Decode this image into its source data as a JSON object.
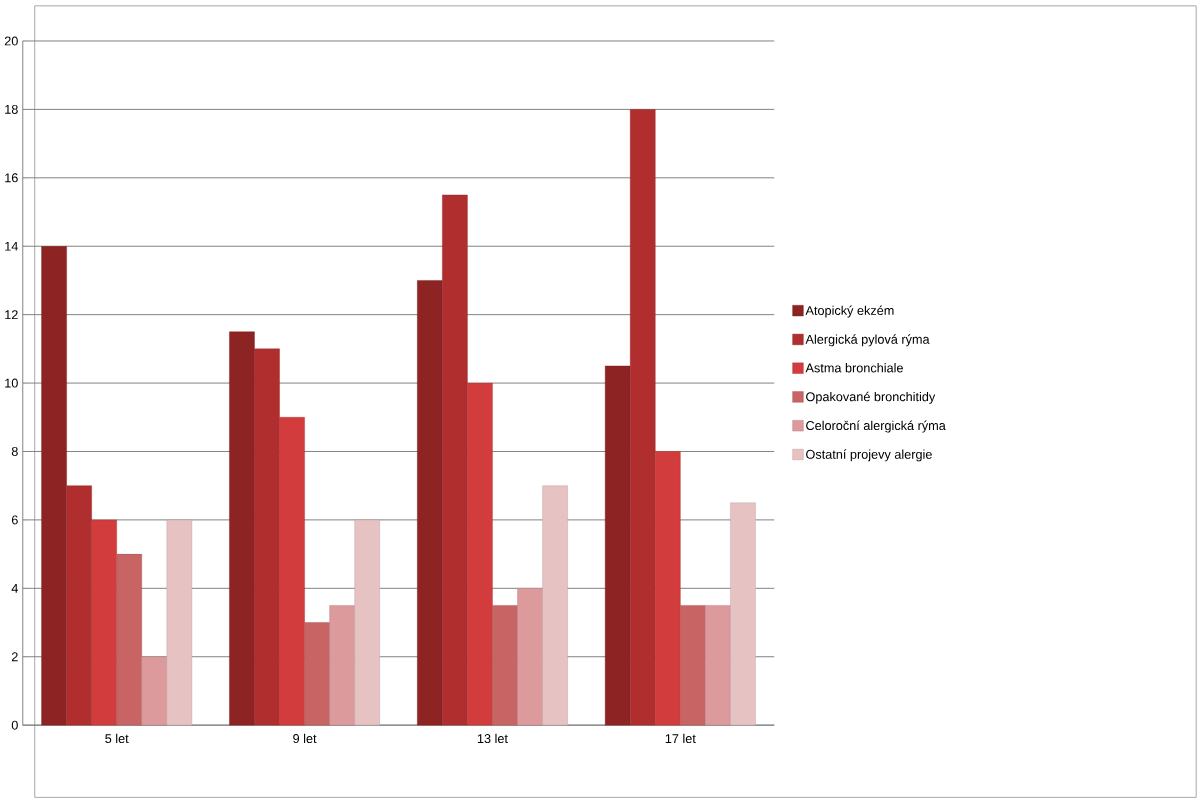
{
  "chart_data": {
    "type": "bar",
    "categories": [
      "5 let",
      "9 let",
      "13 let",
      "17 let"
    ],
    "series": [
      {
        "name": "Atopický ekzém",
        "color": "#8e2323",
        "values": [
          14,
          11.5,
          13,
          10.5
        ]
      },
      {
        "name": "Alergická pylová rýma",
        "color": "#b02e2e",
        "values": [
          7,
          11,
          15.5,
          18
        ]
      },
      {
        "name": "Astma bronchiale",
        "color": "#d23c3c",
        "values": [
          6,
          9,
          10,
          8
        ]
      },
      {
        "name": "Opakované bronchitidy",
        "color": "#c86464",
        "values": [
          5,
          3,
          3.5,
          3.5
        ]
      },
      {
        "name": "Celoroční alergická rýma",
        "color": "#dc9a9c",
        "values": [
          2,
          3.5,
          4,
          3.5
        ]
      },
      {
        "name": "Ostatní projevy alergie",
        "color": "#e6c2c2",
        "values": [
          6,
          6,
          7,
          6.5
        ]
      }
    ],
    "ylim": [
      0,
      20
    ],
    "yticks": [
      0,
      2,
      4,
      6,
      8,
      10,
      12,
      14,
      16,
      18,
      20
    ],
    "grid": "y",
    "legend": "right"
  }
}
